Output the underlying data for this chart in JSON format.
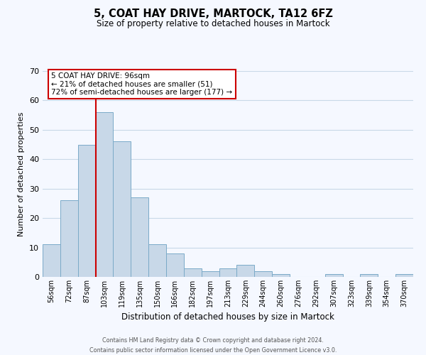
{
  "title": "5, COAT HAY DRIVE, MARTOCK, TA12 6FZ",
  "subtitle": "Size of property relative to detached houses in Martock",
  "xlabel": "Distribution of detached houses by size in Martock",
  "ylabel": "Number of detached properties",
  "bar_labels": [
    "56sqm",
    "72sqm",
    "87sqm",
    "103sqm",
    "119sqm",
    "135sqm",
    "150sqm",
    "166sqm",
    "182sqm",
    "197sqm",
    "213sqm",
    "229sqm",
    "244sqm",
    "260sqm",
    "276sqm",
    "292sqm",
    "307sqm",
    "323sqm",
    "339sqm",
    "354sqm",
    "370sqm"
  ],
  "bar_values": [
    11,
    26,
    45,
    56,
    46,
    27,
    11,
    8,
    3,
    2,
    3,
    4,
    2,
    1,
    0,
    0,
    1,
    0,
    1,
    0,
    1
  ],
  "bar_color": "#c8d8e8",
  "bar_edge_color": "#7aaac8",
  "ylim": [
    0,
    70
  ],
  "yticks": [
    0,
    10,
    20,
    30,
    40,
    50,
    60,
    70
  ],
  "vline_color": "#cc0000",
  "annotation_line1": "5 COAT HAY DRIVE: 96sqm",
  "annotation_line2": "← 21% of detached houses are smaller (51)",
  "annotation_line3": "72% of semi-detached houses are larger (177) →",
  "annotation_box_color": "#ffffff",
  "annotation_box_edgecolor": "#cc0000",
  "footer_line1": "Contains HM Land Registry data © Crown copyright and database right 2024.",
  "footer_line2": "Contains public sector information licensed under the Open Government Licence v3.0.",
  "background_color": "#f5f8ff",
  "plot_bg_color": "#f5f8ff",
  "grid_color": "#c8d8e8"
}
